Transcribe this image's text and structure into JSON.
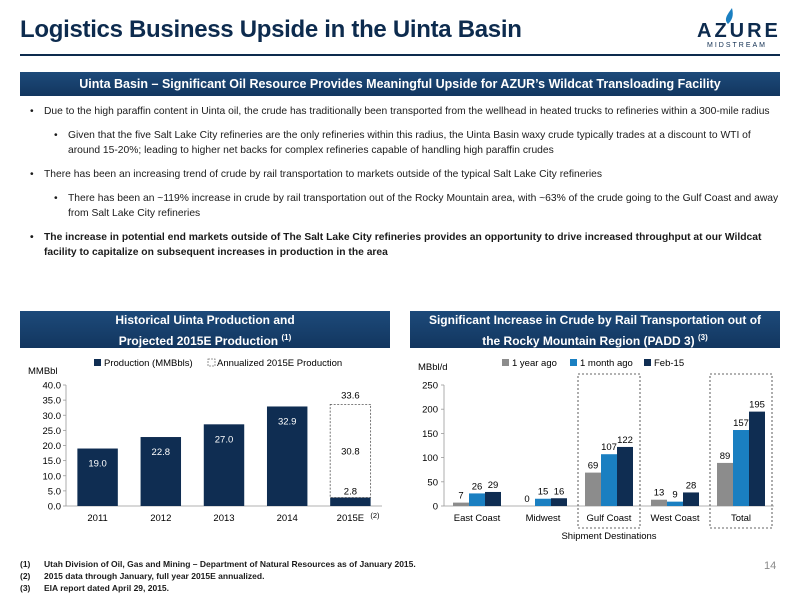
{
  "title": "Logistics Business Upside in the Uinta Basin",
  "logo": {
    "word": "AZURE",
    "sub": "MIDSTREAM"
  },
  "banner_top": "Uinta Basin – Significant Oil Resource Provides Meaningful Upside for AZUR’s Wildcat Transloading Facility",
  "bullets": [
    {
      "level": 1,
      "bold": false,
      "text": "Due to the high paraffin content in Uinta oil, the crude has traditionally been transported from the wellhead in heated trucks to refineries within a 300-mile radius"
    },
    {
      "level": 2,
      "bold": false,
      "text": "Given that the five Salt Lake City refineries are the only refineries within this radius, the Uinta Basin waxy crude typically trades at a discount to WTI of around 15-20%; leading to higher net backs for complex refineries capable of handling high paraffin crudes"
    },
    {
      "level": 1,
      "bold": false,
      "text": "There has been an increasing trend of crude by rail transportation to markets outside of the typical Salt Lake City refineries"
    },
    {
      "level": 2,
      "bold": false,
      "text": "There has been an ~119% increase in crude by rail transportation out of the Rocky Mountain area, with ~63% of the crude going to the Gulf Coast and away from Salt Lake City refineries"
    },
    {
      "level": 1,
      "bold": true,
      "text": "The increase in potential end markets outside of The Salt Lake City refineries provides an opportunity to drive increased throughput at our Wildcat facility to capitalize on subsequent increases in production in the area"
    }
  ],
  "left_header": {
    "line1": "Historical Uinta Production and",
    "line2": "Projected 2015E Production",
    "sup": "(1)"
  },
  "right_header": {
    "line1": "Significant Increase in Crude by Rail Transportation out of",
    "line2": "the Rocky Mountain Region (PADD 3)",
    "sup": "(3)"
  },
  "chart_data": [
    {
      "type": "bar",
      "ylabel": "MMBbl",
      "ylim": [
        0,
        40
      ],
      "yticks": [
        "0.0",
        "5.0",
        "10.0",
        "15.0",
        "20.0",
        "25.0",
        "30.0",
        "35.0",
        "40.0"
      ],
      "categories": [
        "2011",
        "2012",
        "2013",
        "2014",
        "2015E"
      ],
      "category_note": {
        "category": "2015E",
        "text": "(2)"
      },
      "series": [
        {
          "name": "Production (MMBbls)",
          "values": [
            19.0,
            22.8,
            27.0,
            32.9,
            2.8
          ],
          "labels": [
            "19.0",
            "22.8",
            "27.0",
            "32.9",
            "2.8"
          ],
          "color": "#0f2d52"
        },
        {
          "name": "Annualized 2015E Production",
          "values": [
            null,
            null,
            null,
            null,
            30.8
          ],
          "labels": [
            "",
            "",
            "",
            "",
            "30.8"
          ],
          "total_label": "33.6",
          "color": "#ffffff"
        }
      ],
      "legend": "top",
      "grid": false
    },
    {
      "type": "bar",
      "ylabel": "MBbl/d",
      "xlabel": "Shipment Destinations",
      "ylim": [
        0,
        250
      ],
      "yticks": [
        "0",
        "50",
        "100",
        "150",
        "200",
        "250"
      ],
      "categories": [
        "East Coast",
        "Midwest",
        "Gulf Coast",
        "West Coast",
        "Total"
      ],
      "highlight": [
        "Gulf Coast",
        "Total"
      ],
      "series": [
        {
          "name": "1 year ago",
          "values": [
            7,
            0,
            69,
            13,
            89
          ],
          "color": "#8c8c8c"
        },
        {
          "name": "1 month ago",
          "values": [
            26,
            15,
            107,
            9,
            157
          ],
          "color": "#1a7fc1"
        },
        {
          "name": "Feb-15",
          "values": [
            29,
            16,
            122,
            28,
            195
          ],
          "color": "#0f2d52"
        }
      ],
      "legend": "top",
      "grid": false
    }
  ],
  "footnotes": [
    {
      "n": "(1)",
      "text": "Utah Division of Oil, Gas and Mining – Department of Natural Resources as of January 2015."
    },
    {
      "n": "(2)",
      "text": "2015 data through January, full year 2015E annualized."
    },
    {
      "n": "(3)",
      "text": "EIA report dated April 29, 2015."
    }
  ],
  "page_number": "14"
}
